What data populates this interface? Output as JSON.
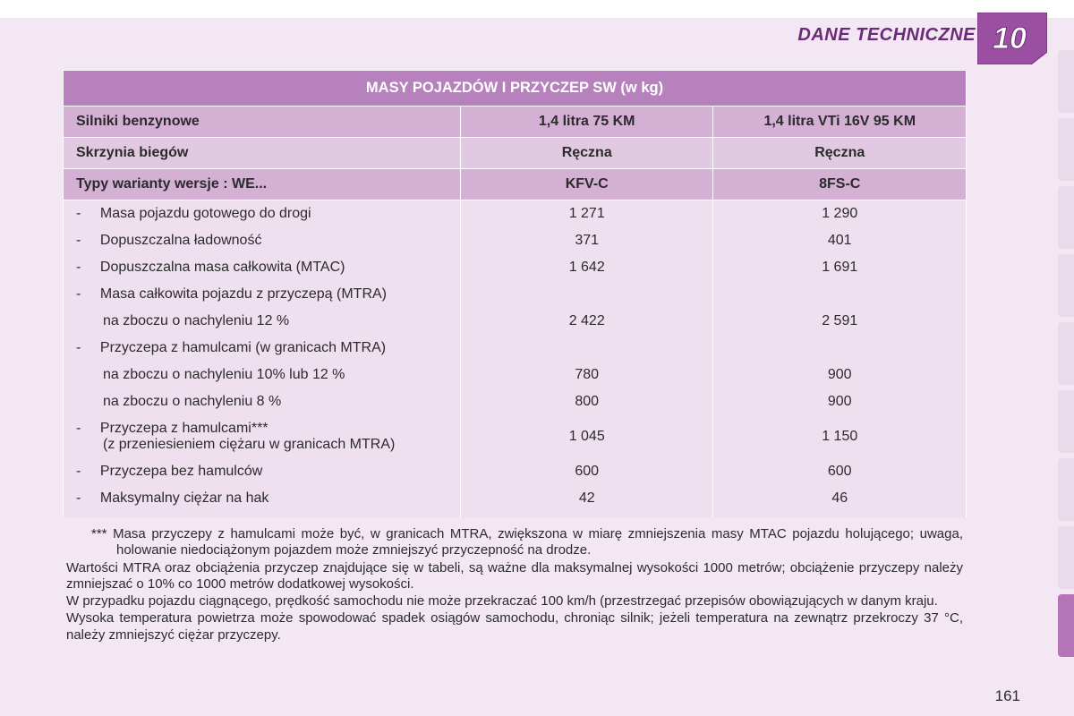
{
  "header": {
    "section_title": "DANE TECHNICZNE",
    "chapter_number": "10",
    "badge_fill": "#9a4fa3",
    "badge_stroke": "#6a2a78",
    "title_color": "#6a2a78"
  },
  "colors": {
    "page_bg": "#f3e7f3",
    "title_row": "#b681bd",
    "header_row": "#d3b0d4",
    "subheader_row": "#e1c9e2",
    "data_row": "#efe0ef",
    "tab_inactive": "#e9dbe9",
    "tab_active": "#b574b7",
    "text": "#2b2b2b"
  },
  "table": {
    "title": "MASY POJAZDÓW I PRZYCZEP SW (w kg)",
    "headers": {
      "engines_label": "Silniki benzynowe",
      "engine1": "1,4 litra 75 KM",
      "engine2": "1,4 litra VTi 16V 95 KM",
      "gearbox_label": "Skrzynia biegów",
      "gearbox1": "Ręczna",
      "gearbox2": "Ręczna",
      "variant_label": "Typy warianty wersje : WE...",
      "variant1": "KFV-C",
      "variant2": "8FS-C"
    },
    "rows": [
      {
        "label": "Masa pojazdu gotowego do drogi",
        "dash": true,
        "v1": "1 271",
        "v2": "1 290"
      },
      {
        "label": "Dopuszczalna ładowność",
        "dash": true,
        "v1": "371",
        "v2": "401"
      },
      {
        "label": "Dopuszczalna masa całkowita (MTAC)",
        "dash": true,
        "v1": "1 642",
        "v2": "1 691"
      },
      {
        "label": "Masa całkowita pojazdu z przyczepą (MTRA)",
        "dash": true,
        "v1": "",
        "v2": ""
      },
      {
        "label": "na zboczu o nachyleniu 12 %",
        "dash": false,
        "indent": true,
        "v1": "2 422",
        "v2": "2 591"
      },
      {
        "label": "Przyczepa z hamulcami (w granicach MTRA)",
        "dash": true,
        "v1": "",
        "v2": ""
      },
      {
        "label": "na zboczu o nachyleniu 10% lub 12 %",
        "dash": false,
        "indent": true,
        "v1": "780",
        "v2": "900"
      },
      {
        "label": "na zboczu o nachyleniu 8 %",
        "dash": false,
        "indent": true,
        "v1": "800",
        "v2": "900"
      },
      {
        "label": "Przyczepa z hamulcami***",
        "label2": "(z przeniesieniem ciężaru w granicach MTRA)",
        "dash": true,
        "v1": "1 045",
        "v2": "1 150"
      },
      {
        "label": "Przyczepa bez hamulców",
        "dash": true,
        "v1": "600",
        "v2": "600"
      },
      {
        "label": "Maksymalny ciężar na hak",
        "dash": true,
        "v1": "42",
        "v2": "46"
      }
    ]
  },
  "footnotes": {
    "p1": "*** Masa przyczepy z hamulcami może być, w granicach MTRA, zwiększona w miarę zmniejszenia masy MTAC pojazdu holującego; uwaga, holowanie niedociążonym pojazdem może zmniejszyć przyczepność na drodze.",
    "p2": "Wartości MTRA oraz obciążenia przyczep znajdujące się w tabeli, są ważne dla maksymalnej wysokości 1000 metrów; obciążenie przyczepy należy zmniejszać o 10% co 1000 metrów dodatkowej wysokości.",
    "p3": "W przypadku pojazdu ciągnącego, prędkość samochodu nie może przekraczać 100 km/h (przestrzegać przepisów obowiązujących w danym kraju.",
    "p4": "Wysoka temperatura powietrza może spowodować spadek osiągów samochodu, chroniąc silnik; jeżeli temperatura na zewnątrz przekroczy 37 °C, należy zmniejszyć ciężar przyczepy."
  },
  "page_number": "161",
  "tabs": {
    "count": 9,
    "active_index": 8
  }
}
